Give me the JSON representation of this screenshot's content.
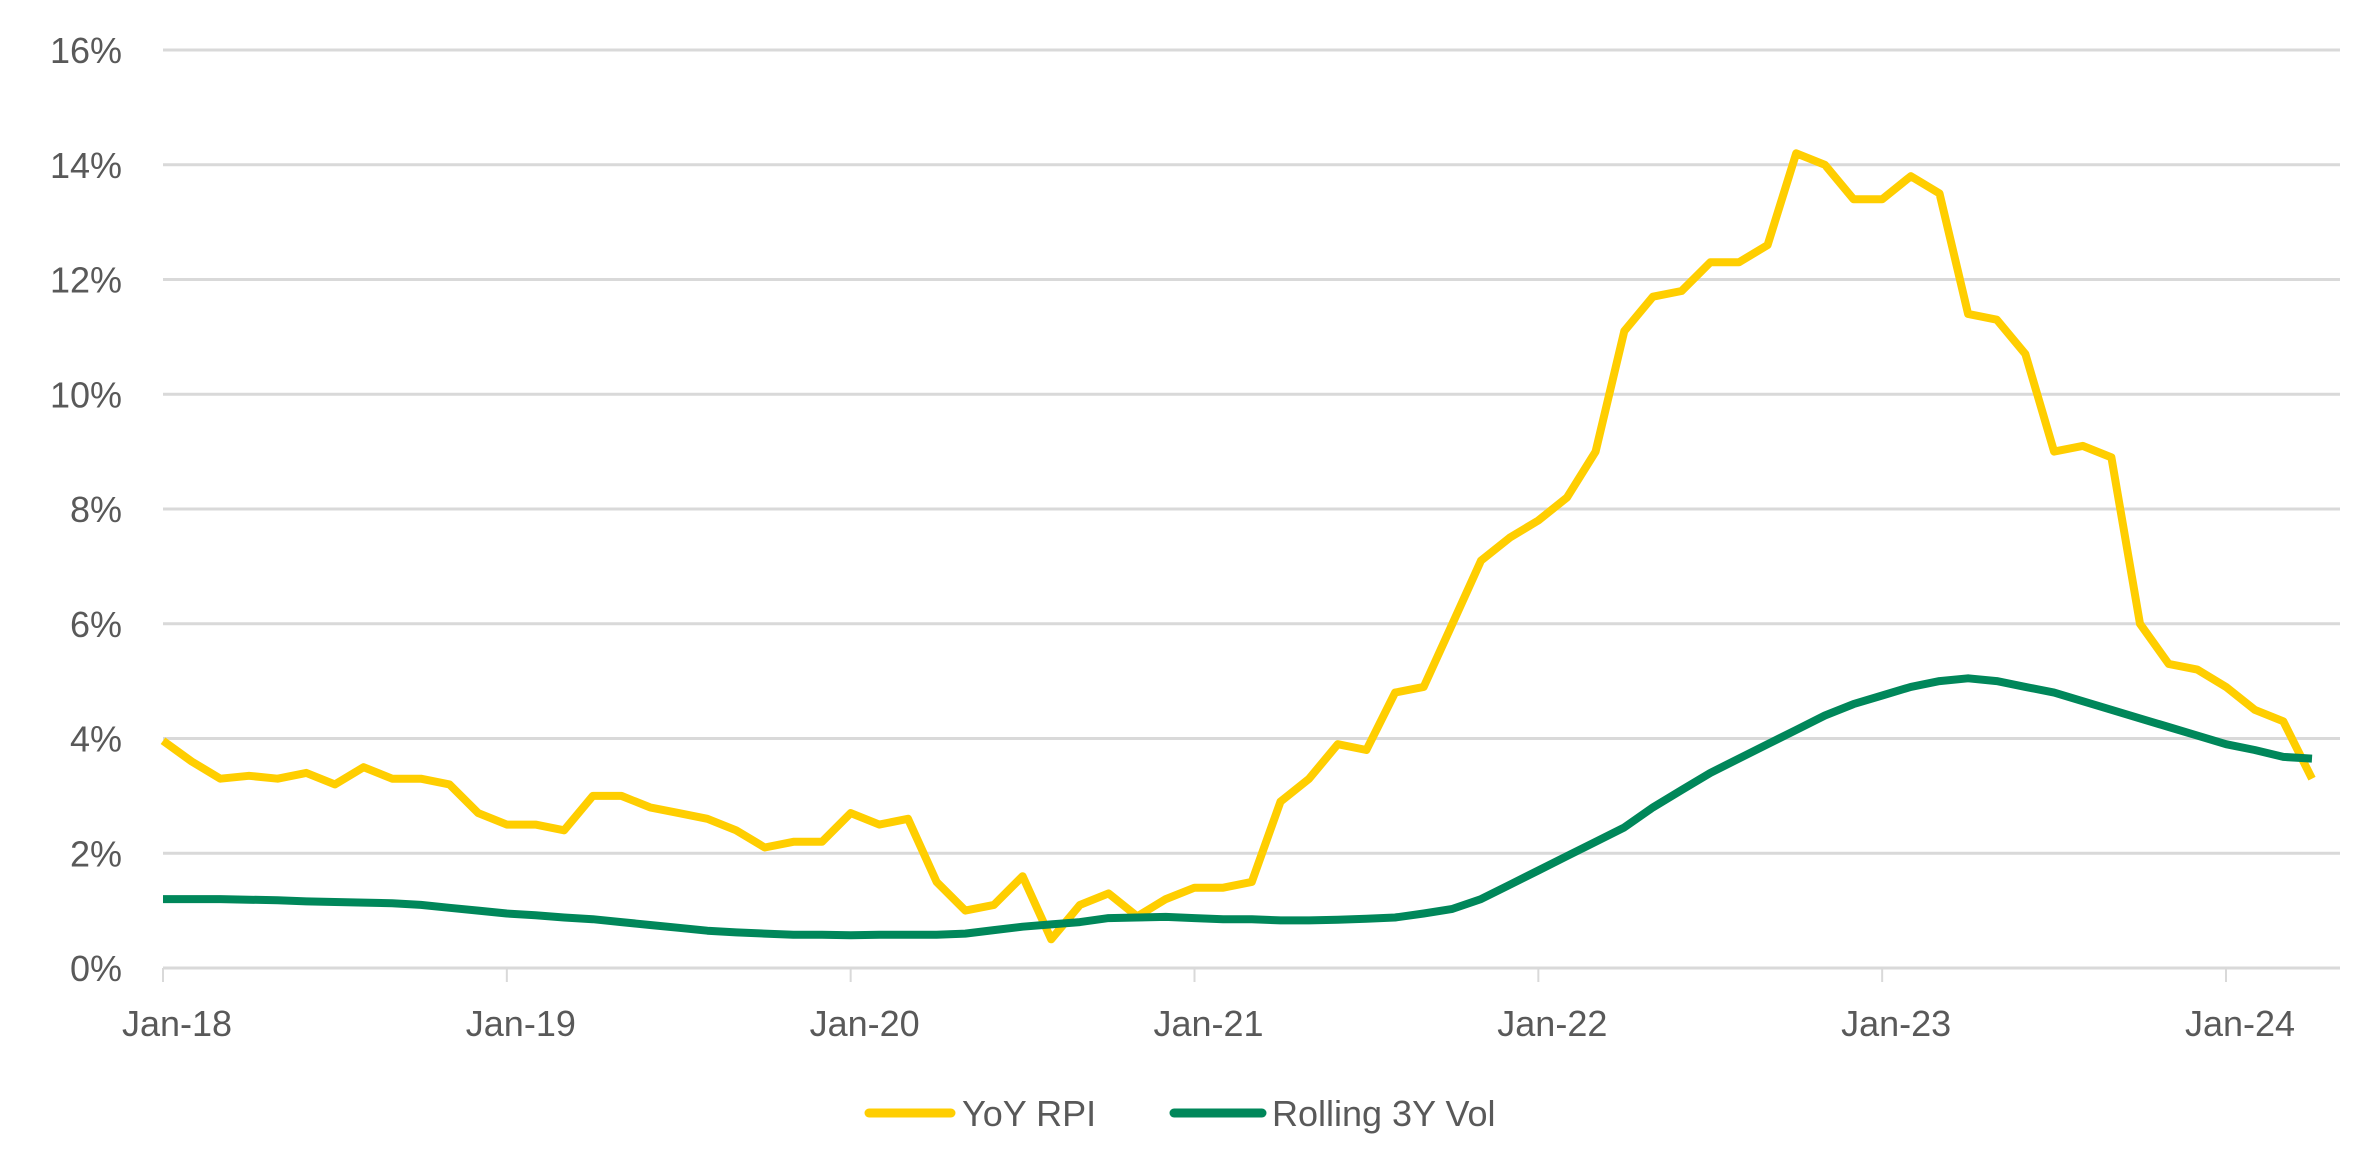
{
  "chart_data": {
    "type": "line",
    "title": "",
    "xlabel": "",
    "ylabel": "",
    "ylim": [
      0,
      16
    ],
    "y_ticks": [
      "0%",
      "2%",
      "4%",
      "6%",
      "8%",
      "10%",
      "12%",
      "14%",
      "16%"
    ],
    "y_tick_values": [
      0,
      2,
      4,
      6,
      8,
      10,
      12,
      14,
      16
    ],
    "x_ticks": [
      "Jan-18",
      "Jan-19",
      "Jan-20",
      "Jan-21",
      "Jan-22",
      "Jan-23",
      "Jan-24"
    ],
    "x_start": "Jan-18",
    "x_frequency": "monthly",
    "grid": true,
    "legend_position": "bottom-center",
    "series": [
      {
        "name": "YoY RPI",
        "color": "#FFCE00",
        "values": [
          3.96,
          3.6,
          3.3,
          3.35,
          3.3,
          3.4,
          3.2,
          3.5,
          3.3,
          3.3,
          3.2,
          2.7,
          2.5,
          2.5,
          2.4,
          3.0,
          3.0,
          2.8,
          2.7,
          2.6,
          2.4,
          2.1,
          2.2,
          2.2,
          2.7,
          2.5,
          2.6,
          1.5,
          1.0,
          1.1,
          1.6,
          0.5,
          1.1,
          1.3,
          0.9,
          1.2,
          1.4,
          1.4,
          1.5,
          2.9,
          3.3,
          3.9,
          3.8,
          4.8,
          4.9,
          6.0,
          7.1,
          7.5,
          7.8,
          8.2,
          9.0,
          11.1,
          11.7,
          11.8,
          12.3,
          12.3,
          12.6,
          14.2,
          14.0,
          13.4,
          13.4,
          13.8,
          13.5,
          11.4,
          11.3,
          10.7,
          9.0,
          9.1,
          8.9,
          6.0,
          5.3,
          5.2,
          4.9,
          4.5,
          4.3,
          3.3
        ]
      },
      {
        "name": "Rolling 3Y Vol",
        "color": "#00875A",
        "values": [
          1.2,
          1.2,
          1.2,
          1.19,
          1.18,
          1.16,
          1.15,
          1.14,
          1.13,
          1.1,
          1.05,
          1.0,
          0.95,
          0.92,
          0.88,
          0.85,
          0.8,
          0.75,
          0.7,
          0.65,
          0.62,
          0.6,
          0.58,
          0.58,
          0.57,
          0.58,
          0.58,
          0.58,
          0.6,
          0.66,
          0.72,
          0.76,
          0.8,
          0.87,
          0.88,
          0.89,
          0.87,
          0.85,
          0.85,
          0.83,
          0.83,
          0.84,
          0.86,
          0.88,
          0.95,
          1.03,
          1.2,
          1.45,
          1.7,
          1.95,
          2.2,
          2.45,
          2.8,
          3.1,
          3.4,
          3.65,
          3.9,
          4.15,
          4.4,
          4.6,
          4.75,
          4.9,
          5.0,
          5.05,
          5.0,
          4.9,
          4.8,
          4.65,
          4.5,
          4.35,
          4.2,
          4.05,
          3.9,
          3.8,
          3.68,
          3.65
        ]
      }
    ]
  }
}
